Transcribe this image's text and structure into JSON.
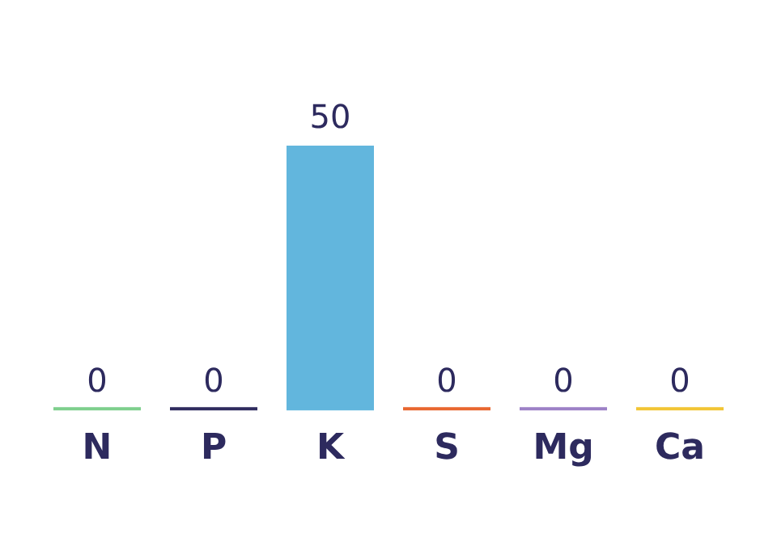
{
  "chart_data": {
    "type": "bar",
    "categories": [
      "N",
      "P",
      "K",
      "S",
      "Mg",
      "Ca"
    ],
    "values": [
      0,
      0,
      50,
      0,
      0,
      0
    ],
    "colors": [
      "#7dcf8c",
      "#2e2a5e",
      "#62b6dd",
      "#e8662e",
      "#9c80c6",
      "#f2c533"
    ],
    "data_labels": true,
    "grid": false,
    "legend": false
  }
}
